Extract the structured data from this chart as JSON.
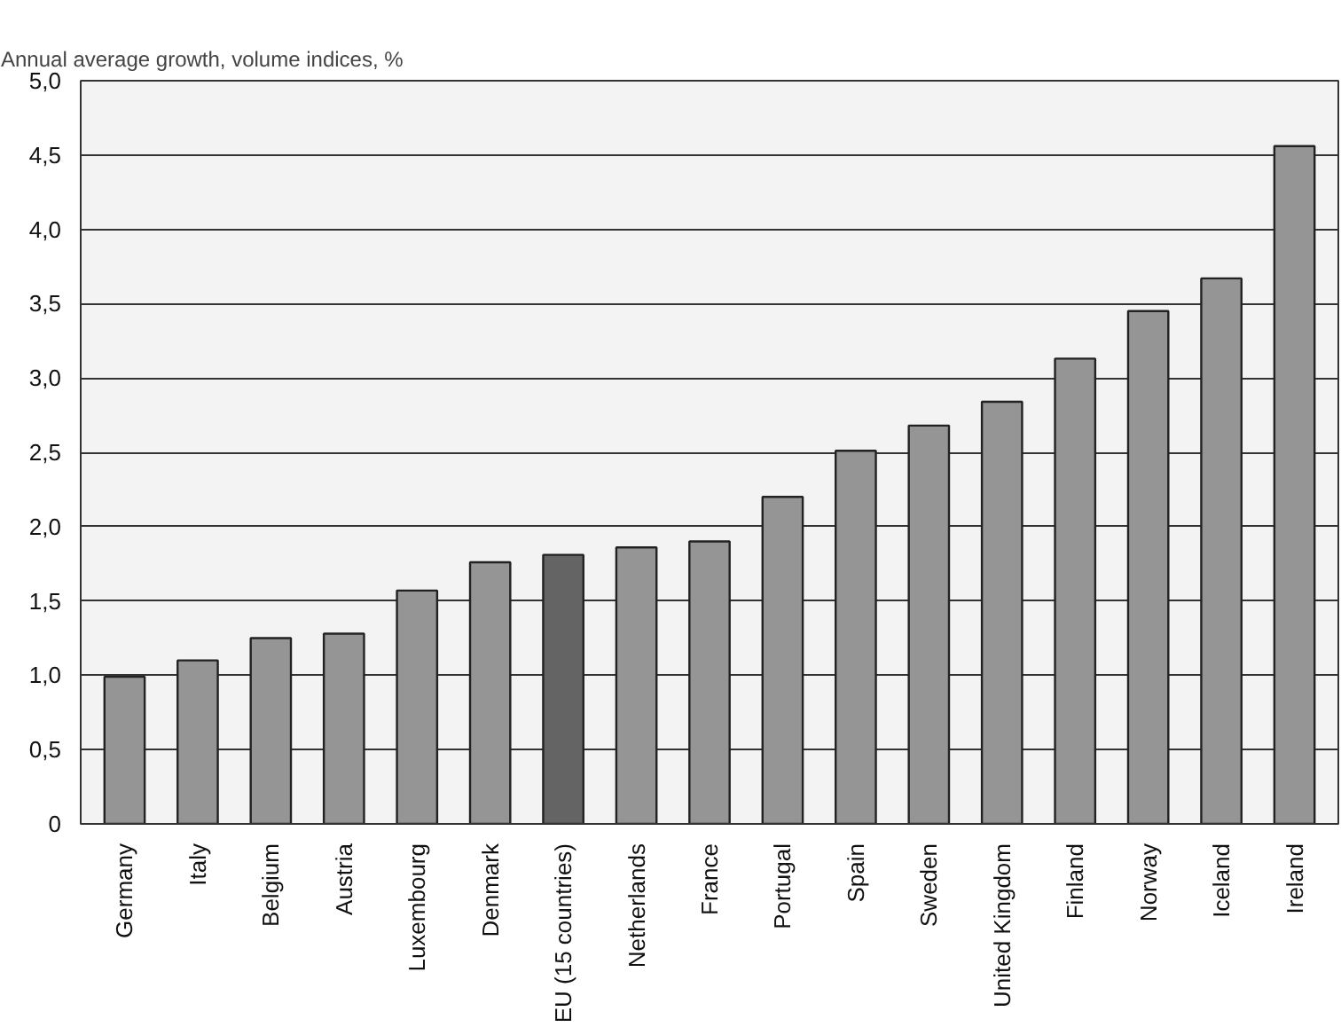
{
  "chart_data": {
    "type": "bar",
    "ylabel": "Annual average growth, volume indices, %",
    "categories": [
      "Germany",
      "Italy",
      "Belgium",
      "Austria",
      "Luxembourg",
      "Denmark",
      "EU (15 countries)",
      "Netherlands",
      "France",
      "Portugal",
      "Spain",
      "Sweden",
      "United Kingdom",
      "Finland",
      "Norway",
      "Iceland",
      "Ireland"
    ],
    "values": [
      0.99,
      1.1,
      1.25,
      1.28,
      1.57,
      1.76,
      1.81,
      1.86,
      1.9,
      2.2,
      2.51,
      2.68,
      2.84,
      3.13,
      3.45,
      3.67,
      4.56
    ],
    "colors": [
      "#959595",
      "#959595",
      "#959595",
      "#959595",
      "#959595",
      "#959595",
      "#646464",
      "#959595",
      "#959595",
      "#959595",
      "#959595",
      "#959595",
      "#959595",
      "#959595",
      "#959595",
      "#959595",
      "#959595"
    ],
    "ylim": [
      0,
      5
    ],
    "yticks": [
      0,
      {
        "value": 0.5,
        "label": "0,5"
      },
      {
        "value": 1,
        "label": "1,0"
      },
      {
        "value": 1.5,
        "label": "1,5"
      },
      {
        "value": 2,
        "label": "2,0"
      },
      {
        "value": 2.5,
        "label": "2,5"
      },
      {
        "value": 3,
        "label": "3,0"
      },
      {
        "value": 3.5,
        "label": "3,5"
      },
      {
        "value": 4,
        "label": "4,0"
      },
      {
        "value": 4.5,
        "label": "4,5"
      },
      {
        "value": 5,
        "label": "5,0"
      }
    ],
    "grid": "y"
  }
}
